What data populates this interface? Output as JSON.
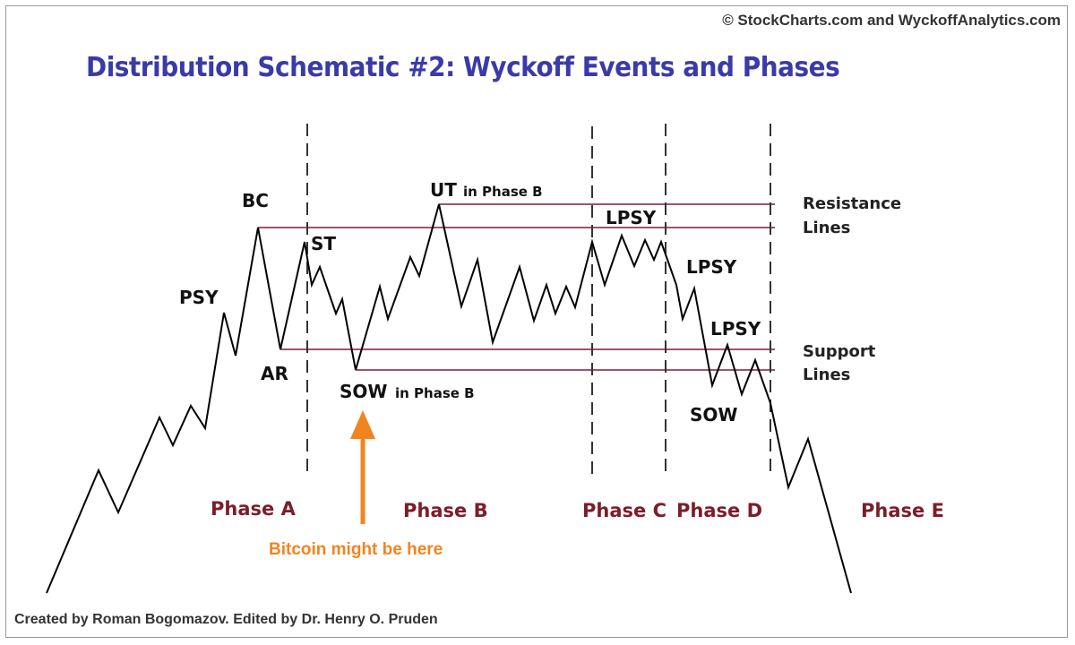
{
  "header": {
    "copyright": "© StockCharts.com and WyckoffAnalytics.com",
    "title": "Distribution Schematic #2: Wyckoff Events and Phases"
  },
  "footer": {
    "credit": "Created by Roman Bogomazov. Edited by Dr. Henry O. Pruden"
  },
  "events": {
    "bc": "BC",
    "psy": "PSY",
    "ar": "AR",
    "st": "ST",
    "ut": "UT",
    "ut_suffix": "in Phase B",
    "sow_b": "SOW",
    "sow_b_suffix": "in Phase B",
    "lpsy_1": "LPSY",
    "lpsy_2": "LPSY",
    "lpsy_3": "LPSY",
    "sow_d": "SOW"
  },
  "legend": {
    "resistance_1": "Resistance",
    "resistance_2": "Lines",
    "support_1": "Support",
    "support_2": "Lines"
  },
  "phases": [
    "Phase A",
    "Phase B",
    "Phase C",
    "Phase D",
    "Phase E"
  ],
  "annotation": {
    "note": "Bitcoin might be here"
  },
  "colors": {
    "price_line": "#000000",
    "level_line": "#7a1e3a",
    "phase_text": "#7a1e2a",
    "title": "#3a3aa8",
    "arrow": "#f28420"
  }
}
